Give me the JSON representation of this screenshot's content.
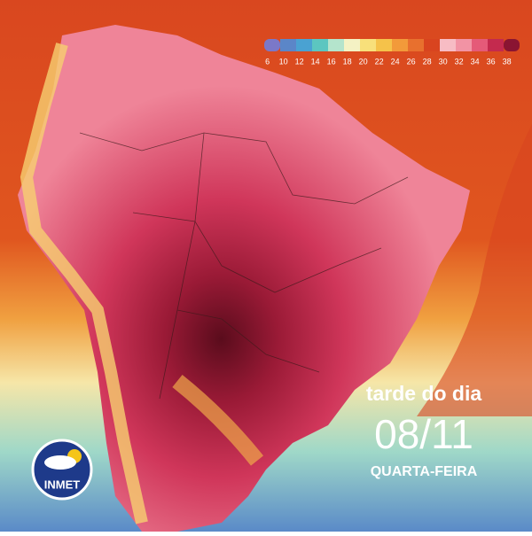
{
  "legend": {
    "ticks": [
      6,
      10,
      12,
      14,
      16,
      18,
      20,
      22,
      24,
      26,
      28,
      30,
      32,
      34,
      36,
      38
    ],
    "colors": [
      "#7b78c8",
      "#5b86c8",
      "#4aa2d2",
      "#5cc6c0",
      "#b4e4cc",
      "#f4f2c4",
      "#f8e07a",
      "#f5c24a",
      "#f29a3a",
      "#e8702e",
      "#d9441f",
      "#f7bcc4",
      "#f293a4",
      "#e55a78",
      "#c42a4e",
      "#8a1432"
    ]
  },
  "caption": {
    "line1": "tarde do dia",
    "date": "08/11",
    "weekday": "QUARTA-FEIRA"
  },
  "logo": {
    "text": "INMET"
  }
}
